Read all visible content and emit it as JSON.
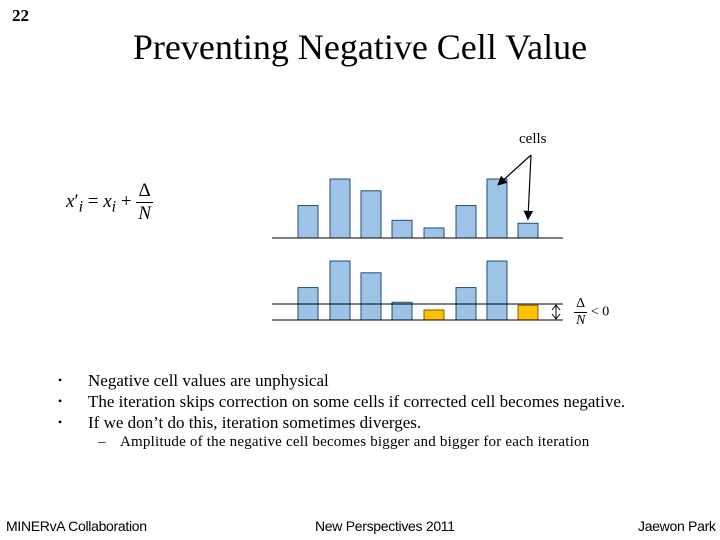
{
  "slide": {
    "number": "22",
    "title": "Preventing Negative Cell Value"
  },
  "diagram": {
    "cells_label": "cells",
    "formula": {
      "lhs_var": "x",
      "lhs_prime": "′",
      "lhs_sub": "i",
      "equals": "=",
      "rhs_var": "x",
      "rhs_sub": "i",
      "plus": "+",
      "numerator": "Δ",
      "denominator": "N"
    },
    "condition": {
      "numerator": "Δ",
      "denominator": "N",
      "relation": "< 0"
    },
    "top_row_heights": [
      0.55,
      1.0,
      0.8,
      0.3,
      0.17,
      0.55,
      1.0,
      0.25
    ],
    "bottom_row_heights": [
      0.55,
      1.0,
      0.8,
      0.3,
      -0.17,
      0.55,
      1.0,
      -0.25
    ],
    "negative_cell_indices": [
      4,
      7
    ],
    "colors": {
      "bar_fill": "#9DC3E6",
      "bar_stroke": "#1F4E79",
      "negative_fill": "#FFC000",
      "negative_stroke": "#7F6000"
    }
  },
  "bullets": [
    "Negative cell values are unphysical",
    "The iteration skips correction on some cells if corrected cell becomes negative.",
    "If we don’t do this, iteration sometimes diverges."
  ],
  "bullet_marker": "•",
  "sub_bullet": {
    "marker": "–",
    "text": "Amplitude of the negative cell becomes bigger and bigger for each iteration"
  },
  "footer": {
    "left": "MINERvA Collaboration",
    "center": "New Perspectives 2011",
    "right": "Jaewon Park"
  }
}
